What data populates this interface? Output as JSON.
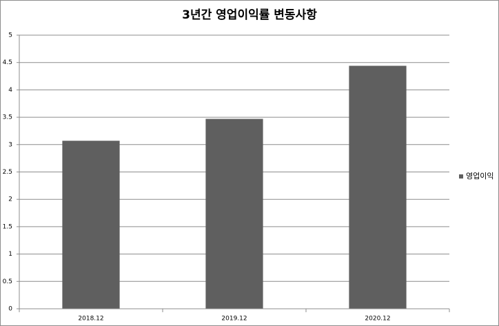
{
  "chart_data": {
    "type": "bar",
    "title": "3년간 영업이익률 변동사항",
    "categories": [
      "2018.12",
      "2019.12",
      "2020.12"
    ],
    "series": [
      {
        "name": "영업이익",
        "color": "#5f5f5f",
        "values": [
          3.07,
          3.47,
          4.44
        ]
      }
    ],
    "ylim": [
      0,
      5
    ],
    "yticks": [
      0,
      0.5,
      1,
      1.5,
      2,
      2.5,
      3,
      3.5,
      4,
      4.5,
      5
    ],
    "grid": true,
    "legend": "right"
  }
}
